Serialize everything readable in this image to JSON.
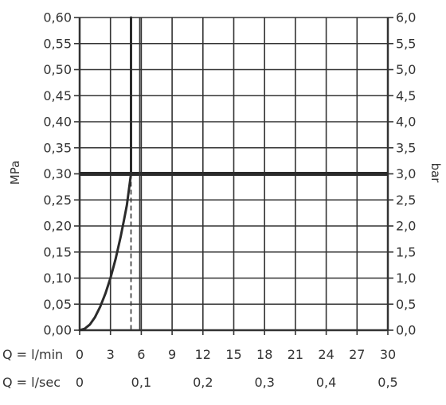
{
  "chart_data": {
    "type": "line",
    "ylabel_left": "MPa",
    "ylabel_right": "bar",
    "left_ticks": [
      "0,00",
      "0,05",
      "0,10",
      "0,15",
      "0,20",
      "0,25",
      "0,30",
      "0,35",
      "0,40",
      "0,45",
      "0,50",
      "0,55",
      "0,60"
    ],
    "right_ticks": [
      "0,0",
      "0,5",
      "1,0",
      "1,5",
      "2,0",
      "2,5",
      "3,0",
      "3,5",
      "4,0",
      "4,5",
      "5,0",
      "5,5",
      "6,0"
    ],
    "ylim": [
      0,
      0.6
    ],
    "xlim": [
      0,
      30
    ],
    "x_rows": [
      {
        "label": "Q = l/min",
        "ticks": [
          {
            "v": 0,
            "t": "0"
          },
          {
            "v": 3,
            "t": "3"
          },
          {
            "v": 6,
            "t": "6"
          },
          {
            "v": 9,
            "t": "9"
          },
          {
            "v": 12,
            "t": "12"
          },
          {
            "v": 15,
            "t": "15"
          },
          {
            "v": 18,
            "t": "18"
          },
          {
            "v": 21,
            "t": "21"
          },
          {
            "v": 24,
            "t": "24"
          },
          {
            "v": 27,
            "t": "27"
          },
          {
            "v": 30,
            "t": "30"
          }
        ]
      },
      {
        "label": "Q = l/sec",
        "ticks": [
          {
            "v": 0,
            "t": "0"
          },
          {
            "v": 6,
            "t": "0,1"
          },
          {
            "v": 12,
            "t": "0,2"
          },
          {
            "v": 18,
            "t": "0,3"
          },
          {
            "v": 24,
            "t": "0,4"
          },
          {
            "v": 30,
            "t": "0,5"
          }
        ]
      }
    ],
    "series": [
      {
        "x": [
          0,
          0.5,
          1,
          1.5,
          2,
          2.5,
          3,
          3.5,
          4,
          4.3,
          4.6,
          4.8,
          5.0,
          5.0
        ],
        "y": [
          0,
          0.003,
          0.011,
          0.025,
          0.045,
          0.07,
          0.1,
          0.137,
          0.18,
          0.21,
          0.24,
          0.27,
          0.3,
          0.6
        ]
      }
    ],
    "reference_line_y": 0.3,
    "reference_dash": {
      "x": 5.0,
      "y_from": 0,
      "y_to": 0.3
    },
    "vertical_line_x": 5.85,
    "grid": true
  }
}
